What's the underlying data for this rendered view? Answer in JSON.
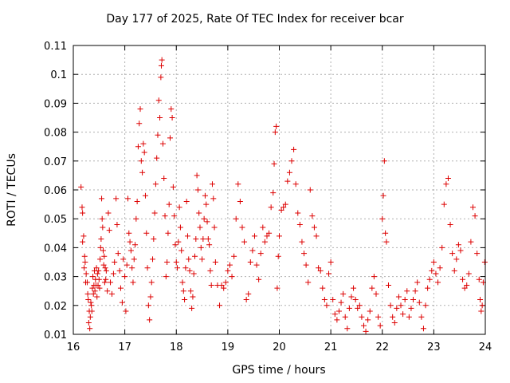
{
  "chart_data": {
    "type": "scatter",
    "title": "Day 177 of 2025, Rate Of TEC Index for receiver bcar",
    "xlabel": "GPS time / hours",
    "ylabel": "ROTI / TECUs",
    "xlim": [
      16,
      24
    ],
    "ylim": [
      0.01,
      0.11
    ],
    "xticks": [
      "16",
      "17",
      "18",
      "19",
      "20",
      "21",
      "22",
      "23",
      "24"
    ],
    "yticks": [
      "0.01",
      "0.02",
      "0.03",
      "0.04",
      "0.05",
      "0.06",
      "0.07",
      "0.08",
      "0.09",
      "0.1",
      "0.11"
    ],
    "grid": true,
    "marker": "+",
    "color": "#dd0000",
    "points": [
      [
        16.15,
        0.061
      ],
      [
        16.17,
        0.054
      ],
      [
        16.18,
        0.052
      ],
      [
        16.2,
        0.044
      ],
      [
        16.22,
        0.037
      ],
      [
        16.23,
        0.035
      ],
      [
        16.25,
        0.031
      ],
      [
        16.27,
        0.028
      ],
      [
        16.28,
        0.024
      ],
      [
        16.3,
        0.014
      ],
      [
        16.32,
        0.012
      ],
      [
        16.33,
        0.016
      ],
      [
        16.35,
        0.02
      ],
      [
        16.37,
        0.026
      ],
      [
        16.38,
        0.03
      ],
      [
        16.4,
        0.027
      ],
      [
        16.42,
        0.025
      ],
      [
        16.43,
        0.029
      ],
      [
        16.45,
        0.033
      ],
      [
        16.47,
        0.031
      ],
      [
        16.48,
        0.027
      ],
      [
        16.5,
        0.029
      ],
      [
        16.52,
        0.036
      ],
      [
        16.53,
        0.04
      ],
      [
        16.55,
        0.057
      ],
      [
        16.57,
        0.047
      ],
      [
        16.58,
        0.039
      ],
      [
        16.6,
        0.037
      ],
      [
        16.62,
        0.033
      ],
      [
        16.63,
        0.029
      ],
      [
        16.18,
        0.042
      ],
      [
        16.21,
        0.033
      ],
      [
        16.24,
        0.028
      ],
      [
        16.29,
        0.022
      ],
      [
        16.31,
        0.018
      ],
      [
        16.34,
        0.021
      ],
      [
        16.36,
        0.018
      ],
      [
        16.39,
        0.024
      ],
      [
        16.41,
        0.032
      ],
      [
        16.44,
        0.027
      ],
      [
        16.46,
        0.023
      ],
      [
        16.49,
        0.032
      ],
      [
        16.51,
        0.026
      ],
      [
        16.54,
        0.043
      ],
      [
        16.56,
        0.05
      ],
      [
        16.59,
        0.034
      ],
      [
        16.61,
        0.028
      ],
      [
        16.64,
        0.032
      ],
      [
        16.66,
        0.025
      ],
      [
        16.68,
        0.052
      ],
      [
        16.7,
        0.046
      ],
      [
        16.72,
        0.028
      ],
      [
        16.75,
        0.024
      ],
      [
        16.78,
        0.031
      ],
      [
        16.8,
        0.035
      ],
      [
        16.83,
        0.057
      ],
      [
        16.85,
        0.048
      ],
      [
        16.87,
        0.038
      ],
      [
        16.9,
        0.032
      ],
      [
        16.92,
        0.026
      ],
      [
        16.95,
        0.021
      ],
      [
        16.97,
        0.036
      ],
      [
        17.0,
        0.03
      ],
      [
        17.02,
        0.018
      ],
      [
        17.04,
        0.034
      ],
      [
        17.06,
        0.057
      ],
      [
        17.08,
        0.045
      ],
      [
        17.1,
        0.042
      ],
      [
        17.12,
        0.039
      ],
      [
        17.14,
        0.033
      ],
      [
        17.16,
        0.028
      ],
      [
        17.18,
        0.036
      ],
      [
        17.2,
        0.041
      ],
      [
        17.22,
        0.05
      ],
      [
        17.24,
        0.056
      ],
      [
        17.26,
        0.075
      ],
      [
        17.28,
        0.083
      ],
      [
        17.3,
        0.088
      ],
      [
        17.32,
        0.07
      ],
      [
        17.34,
        0.066
      ],
      [
        17.36,
        0.076
      ],
      [
        17.38,
        0.073
      ],
      [
        17.4,
        0.058
      ],
      [
        17.42,
        0.045
      ],
      [
        17.44,
        0.033
      ],
      [
        17.46,
        0.02
      ],
      [
        17.48,
        0.015
      ],
      [
        17.5,
        0.023
      ],
      [
        17.52,
        0.028
      ],
      [
        17.54,
        0.036
      ],
      [
        17.56,
        0.043
      ],
      [
        17.58,
        0.052
      ],
      [
        17.6,
        0.062
      ],
      [
        17.62,
        0.071
      ],
      [
        17.64,
        0.079
      ],
      [
        17.66,
        0.091
      ],
      [
        17.68,
        0.085
      ],
      [
        17.7,
        0.099
      ],
      [
        17.71,
        0.103
      ],
      [
        17.72,
        0.105
      ],
      [
        17.74,
        0.076
      ],
      [
        17.76,
        0.064
      ],
      [
        17.78,
        0.051
      ],
      [
        17.8,
        0.03
      ],
      [
        17.82,
        0.035
      ],
      [
        17.84,
        0.045
      ],
      [
        17.86,
        0.055
      ],
      [
        17.88,
        0.078
      ],
      [
        17.9,
        0.088
      ],
      [
        17.92,
        0.085
      ],
      [
        17.94,
        0.061
      ],
      [
        17.96,
        0.051
      ],
      [
        17.98,
        0.041
      ],
      [
        18.0,
        0.035
      ],
      [
        18.02,
        0.033
      ],
      [
        18.04,
        0.042
      ],
      [
        18.06,
        0.054
      ],
      [
        18.08,
        0.047
      ],
      [
        18.1,
        0.039
      ],
      [
        18.12,
        0.028
      ],
      [
        18.14,
        0.025
      ],
      [
        18.16,
        0.022
      ],
      [
        18.18,
        0.033
      ],
      [
        18.2,
        0.056
      ],
      [
        18.22,
        0.044
      ],
      [
        18.24,
        0.036
      ],
      [
        18.26,
        0.032
      ],
      [
        18.28,
        0.025
      ],
      [
        18.3,
        0.019
      ],
      [
        18.32,
        0.023
      ],
      [
        18.34,
        0.031
      ],
      [
        18.36,
        0.037
      ],
      [
        18.38,
        0.043
      ],
      [
        18.4,
        0.065
      ],
      [
        18.42,
        0.06
      ],
      [
        18.44,
        0.052
      ],
      [
        18.46,
        0.047
      ],
      [
        18.48,
        0.04
      ],
      [
        18.5,
        0.036
      ],
      [
        18.52,
        0.043
      ],
      [
        18.54,
        0.05
      ],
      [
        18.56,
        0.058
      ],
      [
        18.58,
        0.055
      ],
      [
        18.6,
        0.049
      ],
      [
        18.62,
        0.043
      ],
      [
        18.64,
        0.041
      ],
      [
        18.66,
        0.032
      ],
      [
        18.68,
        0.027
      ],
      [
        18.7,
        0.062
      ],
      [
        18.72,
        0.057
      ],
      [
        18.74,
        0.047
      ],
      [
        18.76,
        0.035
      ],
      [
        18.8,
        0.027
      ],
      [
        18.84,
        0.02
      ],
      [
        18.88,
        0.027
      ],
      [
        18.92,
        0.026
      ],
      [
        18.96,
        0.028
      ],
      [
        19.0,
        0.032
      ],
      [
        19.04,
        0.034
      ],
      [
        19.08,
        0.03
      ],
      [
        19.12,
        0.037
      ],
      [
        19.16,
        0.05
      ],
      [
        19.2,
        0.062
      ],
      [
        19.24,
        0.056
      ],
      [
        19.28,
        0.047
      ],
      [
        19.32,
        0.042
      ],
      [
        19.36,
        0.022
      ],
      [
        19.4,
        0.024
      ],
      [
        19.44,
        0.035
      ],
      [
        19.48,
        0.039
      ],
      [
        19.52,
        0.044
      ],
      [
        19.56,
        0.034
      ],
      [
        19.6,
        0.029
      ],
      [
        19.64,
        0.038
      ],
      [
        19.68,
        0.047
      ],
      [
        19.72,
        0.042
      ],
      [
        19.76,
        0.044
      ],
      [
        19.8,
        0.045
      ],
      [
        19.84,
        0.054
      ],
      [
        19.88,
        0.059
      ],
      [
        19.9,
        0.069
      ],
      [
        19.92,
        0.08
      ],
      [
        19.94,
        0.082
      ],
      [
        19.96,
        0.026
      ],
      [
        19.98,
        0.037
      ],
      [
        20.0,
        0.044
      ],
      [
        20.04,
        0.053
      ],
      [
        20.08,
        0.054
      ],
      [
        20.12,
        0.055
      ],
      [
        20.16,
        0.063
      ],
      [
        20.2,
        0.066
      ],
      [
        20.24,
        0.07
      ],
      [
        20.28,
        0.074
      ],
      [
        20.32,
        0.062
      ],
      [
        20.36,
        0.052
      ],
      [
        20.4,
        0.048
      ],
      [
        20.44,
        0.042
      ],
      [
        20.48,
        0.038
      ],
      [
        20.52,
        0.034
      ],
      [
        20.56,
        0.028
      ],
      [
        20.6,
        0.06
      ],
      [
        20.64,
        0.051
      ],
      [
        20.68,
        0.047
      ],
      [
        20.72,
        0.044
      ],
      [
        20.76,
        0.033
      ],
      [
        20.8,
        0.032
      ],
      [
        20.84,
        0.026
      ],
      [
        20.88,
        0.022
      ],
      [
        20.92,
        0.02
      ],
      [
        20.96,
        0.031
      ],
      [
        21.0,
        0.035
      ],
      [
        21.04,
        0.022
      ],
      [
        21.08,
        0.017
      ],
      [
        21.12,
        0.015
      ],
      [
        21.16,
        0.018
      ],
      [
        21.2,
        0.021
      ],
      [
        21.24,
        0.024
      ],
      [
        21.28,
        0.016
      ],
      [
        21.32,
        0.012
      ],
      [
        21.36,
        0.019
      ],
      [
        21.4,
        0.023
      ],
      [
        21.44,
        0.026
      ],
      [
        21.48,
        0.022
      ],
      [
        21.52,
        0.019
      ],
      [
        21.56,
        0.02
      ],
      [
        21.6,
        0.016
      ],
      [
        21.64,
        0.013
      ],
      [
        21.68,
        0.011
      ],
      [
        21.72,
        0.015
      ],
      [
        21.76,
        0.018
      ],
      [
        21.8,
        0.026
      ],
      [
        21.84,
        0.03
      ],
      [
        21.88,
        0.024
      ],
      [
        21.92,
        0.016
      ],
      [
        21.96,
        0.013
      ],
      [
        22.0,
        0.05
      ],
      [
        22.02,
        0.058
      ],
      [
        22.04,
        0.07
      ],
      [
        22.06,
        0.045
      ],
      [
        22.08,
        0.042
      ],
      [
        22.12,
        0.027
      ],
      [
        22.16,
        0.02
      ],
      [
        22.2,
        0.016
      ],
      [
        22.24,
        0.014
      ],
      [
        22.28,
        0.019
      ],
      [
        22.32,
        0.023
      ],
      [
        22.36,
        0.02
      ],
      [
        22.4,
        0.017
      ],
      [
        22.44,
        0.022
      ],
      [
        22.48,
        0.025
      ],
      [
        22.52,
        0.016
      ],
      [
        22.56,
        0.019
      ],
      [
        22.6,
        0.022
      ],
      [
        22.64,
        0.025
      ],
      [
        22.68,
        0.028
      ],
      [
        22.72,
        0.021
      ],
      [
        22.76,
        0.016
      ],
      [
        22.8,
        0.012
      ],
      [
        22.84,
        0.02
      ],
      [
        22.88,
        0.026
      ],
      [
        22.92,
        0.029
      ],
      [
        22.96,
        0.032
      ],
      [
        23.0,
        0.035
      ],
      [
        23.04,
        0.031
      ],
      [
        23.08,
        0.028
      ],
      [
        23.12,
        0.033
      ],
      [
        23.16,
        0.04
      ],
      [
        23.2,
        0.055
      ],
      [
        23.24,
        0.062
      ],
      [
        23.28,
        0.064
      ],
      [
        23.32,
        0.048
      ],
      [
        23.36,
        0.038
      ],
      [
        23.4,
        0.032
      ],
      [
        23.44,
        0.036
      ],
      [
        23.48,
        0.041
      ],
      [
        23.52,
        0.039
      ],
      [
        23.56,
        0.029
      ],
      [
        23.6,
        0.026
      ],
      [
        23.64,
        0.027
      ],
      [
        23.68,
        0.031
      ],
      [
        23.72,
        0.042
      ],
      [
        23.76,
        0.054
      ],
      [
        23.8,
        0.051
      ],
      [
        23.84,
        0.038
      ],
      [
        23.88,
        0.029
      ],
      [
        23.9,
        0.022
      ],
      [
        23.92,
        0.018
      ],
      [
        23.94,
        0.02
      ],
      [
        23.96,
        0.028
      ],
      [
        23.99,
        0.035
      ]
    ]
  }
}
